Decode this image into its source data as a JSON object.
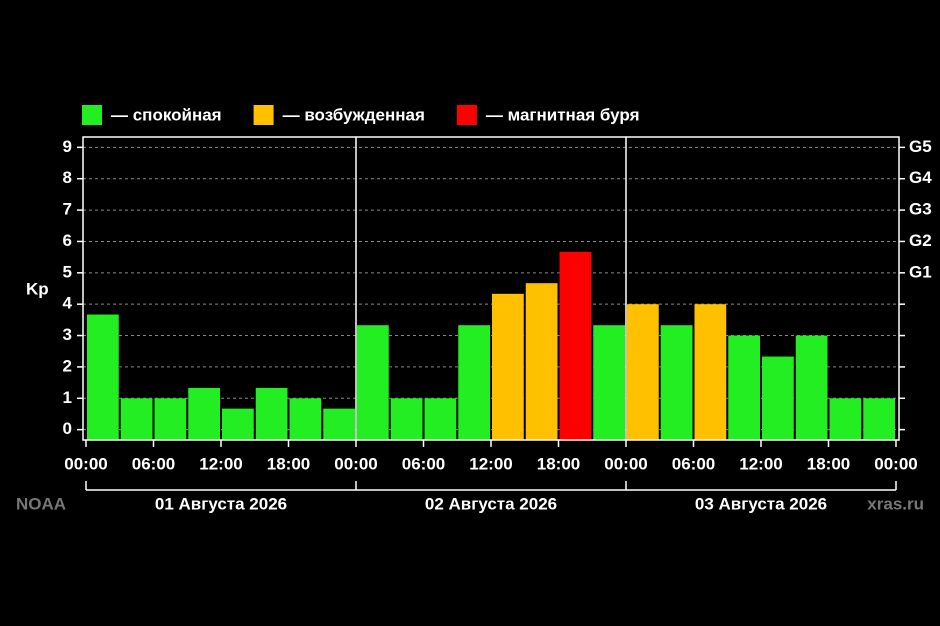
{
  "chart_data": {
    "type": "bar",
    "y_label": "Kp",
    "source": "NOAA",
    "credit": "xras.ru",
    "x": [
      0,
      3,
      6,
      9,
      12,
      15,
      18,
      21,
      24,
      27,
      30,
      33,
      36,
      39,
      42,
      45,
      48,
      51,
      54,
      57,
      60,
      63,
      66,
      69
    ],
    "bar_width": 3,
    "series": [
      {
        "name": "— спокойная",
        "color": "#22ee22",
        "values": [
          3.67,
          1,
          1,
          1.33,
          0.67,
          1.33,
          1,
          0.67,
          3.33,
          1,
          1,
          3.33,
          null,
          null,
          null,
          3.33,
          null,
          3.33,
          null,
          3,
          2.33,
          3,
          1,
          1
        ]
      },
      {
        "name": "— возбужденная",
        "color": "#ffc000",
        "values": [
          null,
          null,
          null,
          null,
          null,
          null,
          null,
          null,
          null,
          null,
          null,
          null,
          4.33,
          4.67,
          null,
          null,
          4,
          null,
          4,
          null,
          null,
          null,
          null,
          null
        ]
      },
      {
        "name": "— магнитная буря",
        "color": "#ff0000",
        "values": [
          null,
          null,
          null,
          null,
          null,
          null,
          null,
          null,
          null,
          null,
          null,
          null,
          null,
          null,
          5.67,
          null,
          null,
          null,
          null,
          null,
          null,
          null,
          null,
          null
        ]
      }
    ],
    "xlim": [
      0,
      72
    ],
    "xticks": [
      {
        "value": 0,
        "label": "00:00"
      },
      {
        "value": 6,
        "label": "06:00"
      },
      {
        "value": 12,
        "label": "12:00"
      },
      {
        "value": 18,
        "label": "18:00"
      },
      {
        "value": 24,
        "label": "00:00"
      },
      {
        "value": 30,
        "label": "06:00"
      },
      {
        "value": 36,
        "label": "12:00"
      },
      {
        "value": 42,
        "label": "18:00"
      },
      {
        "value": 48,
        "label": "00:00"
      },
      {
        "value": 54,
        "label": "06:00"
      },
      {
        "value": 60,
        "label": "12:00"
      },
      {
        "value": 66,
        "label": "18:00"
      },
      {
        "value": 72,
        "label": "00:00"
      }
    ],
    "ylim": [
      -0.33,
      9.33
    ],
    "yticks": [
      0,
      1,
      2,
      3,
      4,
      5,
      6,
      7,
      8,
      9
    ],
    "y2lim": [
      -0.33,
      9.33
    ],
    "y2ticks": [
      {
        "value": 5,
        "label": "G1"
      },
      {
        "value": 6,
        "label": "G2"
      },
      {
        "value": 7,
        "label": "G3"
      },
      {
        "value": 8,
        "label": "G4"
      },
      {
        "value": 9,
        "label": "G5"
      }
    ],
    "days": [
      "01 Августа 2026",
      "02 Августа 2026",
      "03 Августа 2026"
    ],
    "grid": true
  }
}
